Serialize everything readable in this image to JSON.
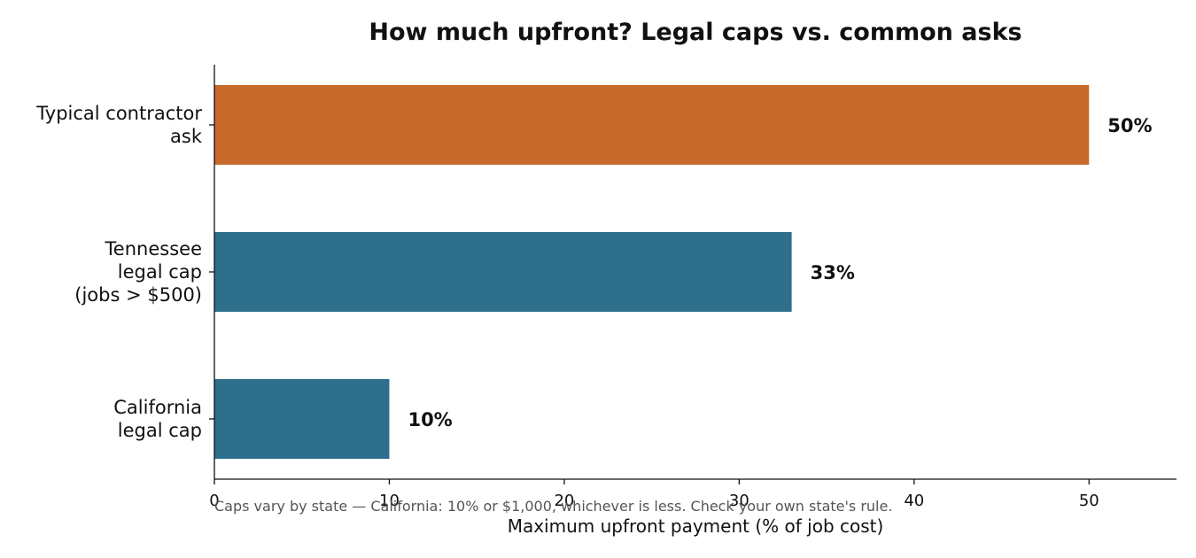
{
  "chart_data": {
    "type": "bar",
    "orientation": "horizontal",
    "title": "How much upfront? Legal caps vs. common asks",
    "xlabel": "Maximum upfront payment (% of job cost)",
    "ylabel": "",
    "xlim": [
      0,
      55
    ],
    "xticks": [
      0,
      10,
      20,
      30,
      40,
      50
    ],
    "grid": false,
    "categories": [
      [
        "Typical contractor",
        "ask"
      ],
      [
        "Tennessee",
        "legal cap",
        "(jobs > $500)"
      ],
      [
        "California",
        "legal cap"
      ]
    ],
    "values": [
      50,
      33,
      10
    ],
    "data_labels": [
      "50%",
      "33%",
      "10%"
    ],
    "colors": [
      "#c76a2b",
      "#2e6f8c",
      "#2e6f8c"
    ],
    "note": "Caps vary by state — California: 10% or $1,000, whichever is less. Check your own state's rule."
  }
}
